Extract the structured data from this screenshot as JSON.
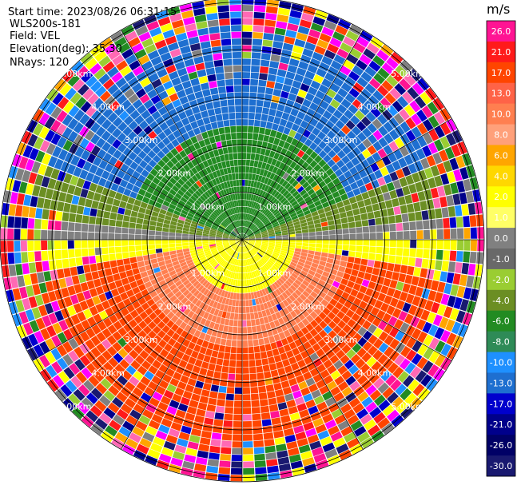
{
  "info": {
    "start_time": "Start time: 2023/08/26 06:31:15",
    "instrument": "WLS200s-181",
    "field": "Field: VEL",
    "elevation": "Elevation(deg): 35.30",
    "nrays": "NRays: 120"
  },
  "chart_data": {
    "type": "heatmap",
    "projection": "polar (PPI)",
    "field": "VEL",
    "unit": "m/s",
    "range_rings_km": [
      1.0,
      2.0,
      3.0,
      4.0,
      5.0
    ],
    "ring_labels": [
      "1.00km",
      "2.00km",
      "3.00km",
      "4.00km",
      "5.00km"
    ],
    "max_range_km": 5.2,
    "nrays": 120,
    "colorbar_ticks": [
      "26.0",
      "21.0",
      "17.0",
      "13.0",
      "10.0",
      "8.0",
      "6.0",
      "4.0",
      "2.0",
      "1.0",
      "0.0",
      "-1.0",
      "-2.0",
      "-4.0",
      "-6.0",
      "-8.0",
      "-10.0",
      "-13.0",
      "-17.0",
      "-21.0",
      "-26.0",
      "-30.0"
    ],
    "colorbar_colors": [
      "#ff1493",
      "#ff1a1a",
      "#ff4500",
      "#ff6347",
      "#ff7f50",
      "#ffa07a",
      "#ffa500",
      "#ffd700",
      "#ffff00",
      "#ffff66",
      "#808080",
      "#696969",
      "#9acd32",
      "#6b8e23",
      "#228b22",
      "#2e8b57",
      "#1e90ff",
      "#1e6fd0",
      "#0000cd",
      "#00008b",
      "#000066",
      "#191970"
    ]
  }
}
